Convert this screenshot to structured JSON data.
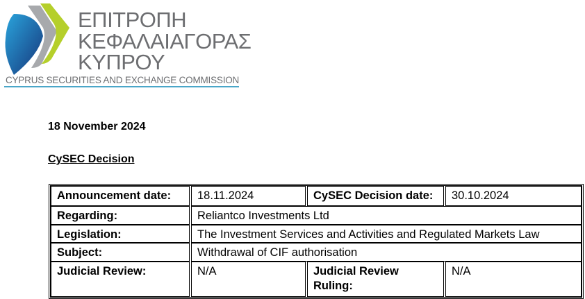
{
  "logo": {
    "greek_lines": [
      "ΕΠΙΤΡΟΠΗ",
      "ΚΕΦΑΛΑΙΑΓΟΡΑΣ",
      "ΚΥΠΡΟΥ"
    ],
    "english": "CYPRUS SECURITIES AND EXCHANGE COMMISSION",
    "colors": {
      "blue": "#1a6fb0",
      "grey": "#a7a9ac",
      "green": "#b5cf2b",
      "text": "#6d6e71",
      "line": "#4aa6c8"
    }
  },
  "document": {
    "date": "18 November 2024",
    "heading": "CySEC Decision"
  },
  "table": {
    "announcement_label": "Announcement date:",
    "announcement_value": "18.11.2024",
    "decision_label": "CySEC Decision date:",
    "decision_value": "30.10.2024",
    "regarding_label": "Regarding:",
    "regarding_value": "Reliantco Investments Ltd",
    "legislation_label": "Legislation:",
    "legislation_value": "The Investment Services and Activities and Regulated Markets Law",
    "subject_label": "Subject:",
    "subject_value": "Withdrawal of CIF authorisation",
    "judicial_review_label": "Judicial Review:",
    "judicial_review_value": "N/A",
    "judicial_ruling_label": "Judicial Review Ruling:",
    "judicial_ruling_value": "N/A"
  }
}
